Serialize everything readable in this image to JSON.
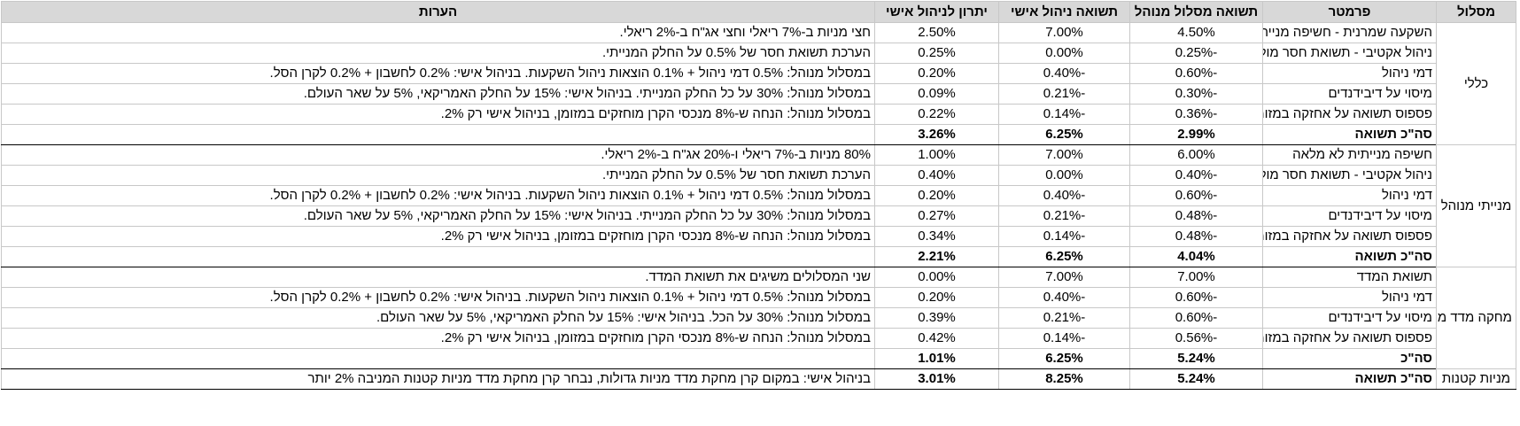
{
  "headers": {
    "track": "מסלול",
    "parameter": "פרמטר",
    "managed_return": "תשואה מסלול מנוהל",
    "self_return": "תשואה ניהול אישי",
    "advantage": "יתרון לניהול אישי",
    "notes": "הערות"
  },
  "groups": [
    {
      "track": "כללי",
      "rows": [
        {
          "parameter": "השקעה שמרנית - חשיפה מנייתית נמוכה",
          "managed": "4.50%",
          "self": "7.00%",
          "advantage": "2.50%",
          "notes": "חצי מניות ב-7% ריאלי וחצי אג\"ח ב-2% ריאלי."
        },
        {
          "parameter": "ניהול אקטיבי - תשואת חסר מול המדד",
          "managed": "-0.25%",
          "self": "0.00%",
          "advantage": "0.25%",
          "notes": "הערכת תשואת חסר של 0.5% על החלק המנייתי."
        },
        {
          "parameter": "דמי ניהול",
          "managed": "-0.60%",
          "self": "-0.40%",
          "advantage": "0.20%",
          "notes": "במסלול מנוהל: 0.5% דמי ניהול + 0.1% הוצאות ניהול השקעות. בניהול אישי: 0.2% לחשבון + 0.2% לקרן הסל."
        },
        {
          "parameter": "מיסוי על דיבידנדים",
          "managed": "-0.30%",
          "self": "-0.21%",
          "advantage": "0.09%",
          "notes": "במסלול מנוהל: 30% על כל החלק המנייתי. בניהול אישי: 15% על החלק האמריקאי, 5% על שאר העולם."
        },
        {
          "parameter": "פספוס תשואה על אחזקה במזומן",
          "managed": "-0.36%",
          "self": "-0.14%",
          "advantage": "0.22%",
          "notes": "במסלול מנוהל: הנחה ש-8% מנכסי הקרן מוחזקים במזומן, בניהול אישי רק 2%."
        }
      ],
      "total": {
        "label": "סה\"כ תשואה",
        "managed": "2.99%",
        "self": "6.25%",
        "advantage": "3.26%"
      }
    },
    {
      "track": "מנייתי מנוהל",
      "rows": [
        {
          "parameter": "חשיפה מנייתית לא מלאה",
          "managed": "6.00%",
          "self": "7.00%",
          "advantage": "1.00%",
          "notes": "80% מניות ב-7% ריאלי ו-20% אג\"ח ב-2% ריאלי."
        },
        {
          "parameter": "ניהול אקטיבי - תשואת חסר מול המדד",
          "managed": "-0.40%",
          "self": "0.00%",
          "advantage": "0.40%",
          "notes": "הערכת תשואת חסר של 0.5% על החלק המנייתי."
        },
        {
          "parameter": "דמי ניהול",
          "managed": "-0.60%",
          "self": "-0.40%",
          "advantage": "0.20%",
          "notes": "במסלול מנוהל: 0.5% דמי ניהול + 0.1% הוצאות ניהול השקעות. בניהול אישי: 0.2% לחשבון + 0.2% לקרן הסל."
        },
        {
          "parameter": "מיסוי על דיבידנדים",
          "managed": "-0.48%",
          "self": "-0.21%",
          "advantage": "0.27%",
          "notes": "במסלול מנוהל: 30% על כל החלק המנייתי. בניהול אישי: 15% על החלק האמריקאי, 5% על שאר העולם."
        },
        {
          "parameter": "פספוס תשואה על אחזקה במזומן",
          "managed": "-0.48%",
          "self": "-0.14%",
          "advantage": "0.34%",
          "notes": "במסלול מנוהל: הנחה ש-8% מנכסי הקרן מוחזקים במזומן, בניהול אישי רק 2%."
        }
      ],
      "total": {
        "label": "סה\"כ תשואה",
        "managed": "4.04%",
        "self": "6.25%",
        "advantage": "2.21%"
      }
    },
    {
      "track": "מחקה מדד מובנה",
      "rows": [
        {
          "parameter": "תשואת המדד",
          "managed": "7.00%",
          "self": "7.00%",
          "advantage": "0.00%",
          "notes": "שני המסלולים משיגים את תשואת המדד."
        },
        {
          "parameter": "דמי ניהול",
          "managed": "-0.60%",
          "self": "-0.40%",
          "advantage": "0.20%",
          "notes": "במסלול מנוהל: 0.5% דמי ניהול + 0.1% הוצאות ניהול השקעות. בניהול אישי: 0.2% לחשבון + 0.2% לקרן הסל."
        },
        {
          "parameter": "מיסוי על דיבידנדים",
          "managed": "-0.60%",
          "self": "-0.21%",
          "advantage": "0.39%",
          "notes": "במסלול מנוהל: 30% על הכל. בניהול אישי: 15% על החלק האמריקאי, 5% על שאר העולם."
        },
        {
          "parameter": "פספוס תשואה על אחזקה במזומן",
          "managed": "-0.56%",
          "self": "-0.14%",
          "advantage": "0.42%",
          "notes": "במסלול מנוהל: הנחה ש-8% מנכסי הקרן מוחזקים במזומן, בניהול אישי רק 2%."
        }
      ],
      "total": {
        "label": "סה\"כ",
        "managed": "5.24%",
        "self": "6.25%",
        "advantage": "1.01%"
      }
    }
  ],
  "small_caps": {
    "track": "מניות קטנות",
    "label": "סה\"כ תשואה",
    "managed": "5.24%",
    "self": "8.25%",
    "advantage": "3.01%",
    "notes": "בניהול אישי: במקום קרן מחקת מדד מניות גדולות, נבחר קרן מחקת מדד מניות קטנות המניבה 2% יותר"
  }
}
